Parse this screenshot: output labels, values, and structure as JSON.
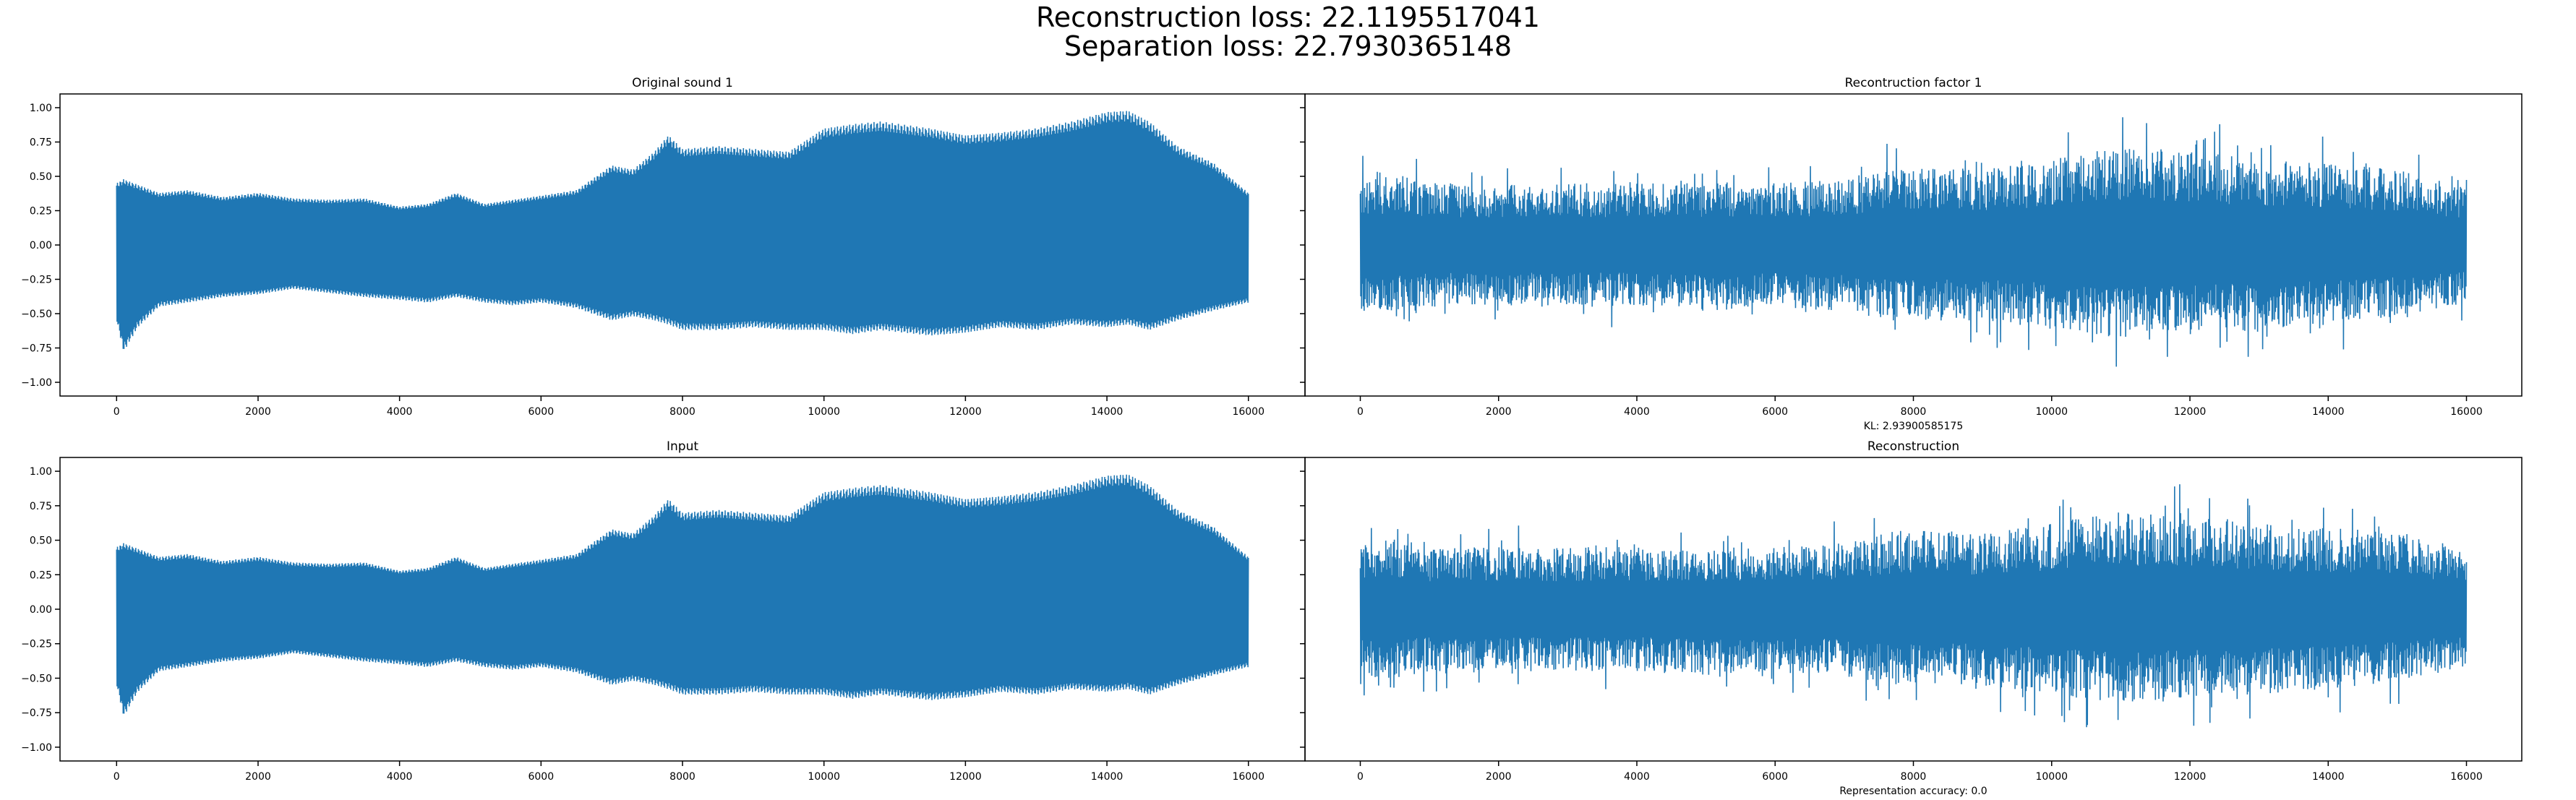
{
  "figure": {
    "title_line1": "Reconstruction loss: 22.1195517041",
    "title_line2": "Separation loss: 22.7930365148",
    "series_color": "#1f77b4"
  },
  "chart_data": [
    {
      "type": "line",
      "title": "Original sound 1",
      "xlabel": "",
      "ylabel": "",
      "xlim": [
        -800,
        16800
      ],
      "ylim": [
        -1.1,
        1.1
      ],
      "xticks": [
        0,
        2000,
        4000,
        6000,
        8000,
        10000,
        12000,
        14000,
        16000
      ],
      "yticks": [
        1.0,
        0.75,
        0.5,
        0.25,
        0.0,
        -0.25,
        -0.5,
        -0.75,
        -1.0
      ],
      "ytick_labels": [
        "1.00",
        "0.75",
        "0.50",
        "0.25",
        "0.00",
        "−0.25",
        "−0.50",
        "−0.75",
        "−1.00"
      ],
      "show_ytick_labels": true,
      "waveform": "tonal",
      "envelope": {
        "x": [
          0,
          100,
          300,
          600,
          1000,
          1500,
          2000,
          2500,
          3000,
          3500,
          4000,
          4400,
          4800,
          5200,
          5600,
          6000,
          6500,
          7000,
          7300,
          7600,
          7800,
          8000,
          8500,
          9000,
          9500,
          10000,
          10400,
          10800,
          11500,
          12000,
          12500,
          13000,
          13500,
          14000,
          14300,
          14600,
          15000,
          15500,
          16000
        ],
        "upper": [
          0.45,
          0.48,
          0.44,
          0.38,
          0.4,
          0.35,
          0.38,
          0.34,
          0.33,
          0.34,
          0.28,
          0.3,
          0.38,
          0.3,
          0.33,
          0.36,
          0.4,
          0.58,
          0.55,
          0.68,
          0.8,
          0.7,
          0.72,
          0.7,
          0.68,
          0.85,
          0.88,
          0.9,
          0.85,
          0.8,
          0.82,
          0.85,
          0.9,
          0.97,
          0.98,
          0.9,
          0.72,
          0.6,
          0.38
        ],
        "lower": [
          -0.55,
          -0.78,
          -0.6,
          -0.45,
          -0.42,
          -0.38,
          -0.36,
          -0.32,
          -0.35,
          -0.38,
          -0.4,
          -0.42,
          -0.38,
          -0.42,
          -0.44,
          -0.42,
          -0.46,
          -0.55,
          -0.52,
          -0.55,
          -0.58,
          -0.62,
          -0.62,
          -0.6,
          -0.62,
          -0.62,
          -0.65,
          -0.62,
          -0.66,
          -0.64,
          -0.6,
          -0.62,
          -0.58,
          -0.6,
          -0.58,
          -0.62,
          -0.55,
          -0.48,
          -0.42
        ]
      }
    },
    {
      "type": "line",
      "title": "Recontruction factor 1",
      "xlabel": "KL: 2.93900585175",
      "ylabel": "",
      "xlim": [
        -800,
        16800
      ],
      "ylim": [
        -1.1,
        1.1
      ],
      "xticks": [
        0,
        2000,
        4000,
        6000,
        8000,
        10000,
        12000,
        14000,
        16000
      ],
      "yticks": [
        1.0,
        0.75,
        0.5,
        0.25,
        0.0,
        -0.25,
        -0.5,
        -0.75,
        -1.0
      ],
      "show_ytick_labels": false,
      "waveform": "noisy",
      "envelope": {
        "x": [
          0,
          500,
          1000,
          2000,
          3000,
          4000,
          5000,
          6000,
          7000,
          7500,
          8000,
          9000,
          10000,
          10500,
          11000,
          12000,
          13000,
          14000,
          15000,
          16000
        ],
        "upper": [
          0.48,
          0.52,
          0.45,
          0.45,
          0.45,
          0.45,
          0.45,
          0.45,
          0.48,
          0.55,
          0.58,
          0.55,
          0.62,
          0.68,
          0.7,
          0.7,
          0.62,
          0.6,
          0.55,
          0.42
        ],
        "lower": [
          -0.5,
          -0.5,
          -0.45,
          -0.45,
          -0.45,
          -0.45,
          -0.48,
          -0.45,
          -0.48,
          -0.55,
          -0.55,
          -0.55,
          -0.62,
          -0.65,
          -0.68,
          -0.65,
          -0.62,
          -0.58,
          -0.52,
          -0.42
        ]
      }
    },
    {
      "type": "line",
      "title": "Input",
      "xlabel": "",
      "ylabel": "",
      "xlim": [
        -800,
        16800
      ],
      "ylim": [
        -1.1,
        1.1
      ],
      "xticks": [
        0,
        2000,
        4000,
        6000,
        8000,
        10000,
        12000,
        14000,
        16000
      ],
      "yticks": [
        1.0,
        0.75,
        0.5,
        0.25,
        0.0,
        -0.25,
        -0.5,
        -0.75,
        -1.0
      ],
      "ytick_labels": [
        "1.00",
        "0.75",
        "0.50",
        "0.25",
        "0.00",
        "−0.25",
        "−0.50",
        "−0.75",
        "−1.00"
      ],
      "show_ytick_labels": true,
      "waveform": "tonal",
      "envelope": {
        "x": [
          0,
          100,
          300,
          600,
          1000,
          1500,
          2000,
          2500,
          3000,
          3500,
          4000,
          4400,
          4800,
          5200,
          5600,
          6000,
          6500,
          7000,
          7300,
          7600,
          7800,
          8000,
          8500,
          9000,
          9500,
          10000,
          10400,
          10800,
          11500,
          12000,
          12500,
          13000,
          13500,
          14000,
          14300,
          14600,
          15000,
          15500,
          16000
        ],
        "upper": [
          0.45,
          0.48,
          0.44,
          0.38,
          0.4,
          0.35,
          0.38,
          0.34,
          0.33,
          0.34,
          0.28,
          0.3,
          0.38,
          0.3,
          0.33,
          0.36,
          0.4,
          0.58,
          0.55,
          0.68,
          0.8,
          0.7,
          0.72,
          0.7,
          0.68,
          0.85,
          0.88,
          0.9,
          0.85,
          0.8,
          0.82,
          0.85,
          0.9,
          0.97,
          0.98,
          0.9,
          0.72,
          0.6,
          0.38
        ],
        "lower": [
          -0.55,
          -0.78,
          -0.6,
          -0.45,
          -0.42,
          -0.38,
          -0.36,
          -0.32,
          -0.35,
          -0.38,
          -0.4,
          -0.42,
          -0.38,
          -0.42,
          -0.44,
          -0.42,
          -0.46,
          -0.55,
          -0.52,
          -0.55,
          -0.58,
          -0.62,
          -0.62,
          -0.6,
          -0.62,
          -0.62,
          -0.65,
          -0.62,
          -0.66,
          -0.64,
          -0.6,
          -0.62,
          -0.58,
          -0.6,
          -0.58,
          -0.62,
          -0.55,
          -0.48,
          -0.42
        ]
      }
    },
    {
      "type": "line",
      "title": "Reconstruction",
      "xlabel": "Representation accuracy: 0.0",
      "ylabel": "",
      "xlim": [
        -800,
        16800
      ],
      "ylim": [
        -1.1,
        1.1
      ],
      "xticks": [
        0,
        2000,
        4000,
        6000,
        8000,
        10000,
        12000,
        14000,
        16000
      ],
      "yticks": [
        1.0,
        0.75,
        0.5,
        0.25,
        0.0,
        -0.25,
        -0.5,
        -0.75,
        -1.0
      ],
      "show_ytick_labels": false,
      "waveform": "noisy",
      "envelope": {
        "x": [
          0,
          500,
          1000,
          2000,
          3000,
          4000,
          5000,
          6000,
          7000,
          7500,
          8000,
          9000,
          10000,
          10500,
          11000,
          12000,
          13000,
          14000,
          15000,
          16000
        ],
        "upper": [
          0.48,
          0.52,
          0.45,
          0.45,
          0.45,
          0.45,
          0.45,
          0.45,
          0.48,
          0.55,
          0.58,
          0.55,
          0.62,
          0.68,
          0.7,
          0.7,
          0.62,
          0.6,
          0.55,
          0.42
        ],
        "lower": [
          -0.5,
          -0.5,
          -0.45,
          -0.45,
          -0.45,
          -0.45,
          -0.48,
          -0.45,
          -0.48,
          -0.55,
          -0.55,
          -0.55,
          -0.62,
          -0.65,
          -0.68,
          -0.65,
          -0.62,
          -0.58,
          -0.52,
          -0.42
        ]
      }
    }
  ]
}
